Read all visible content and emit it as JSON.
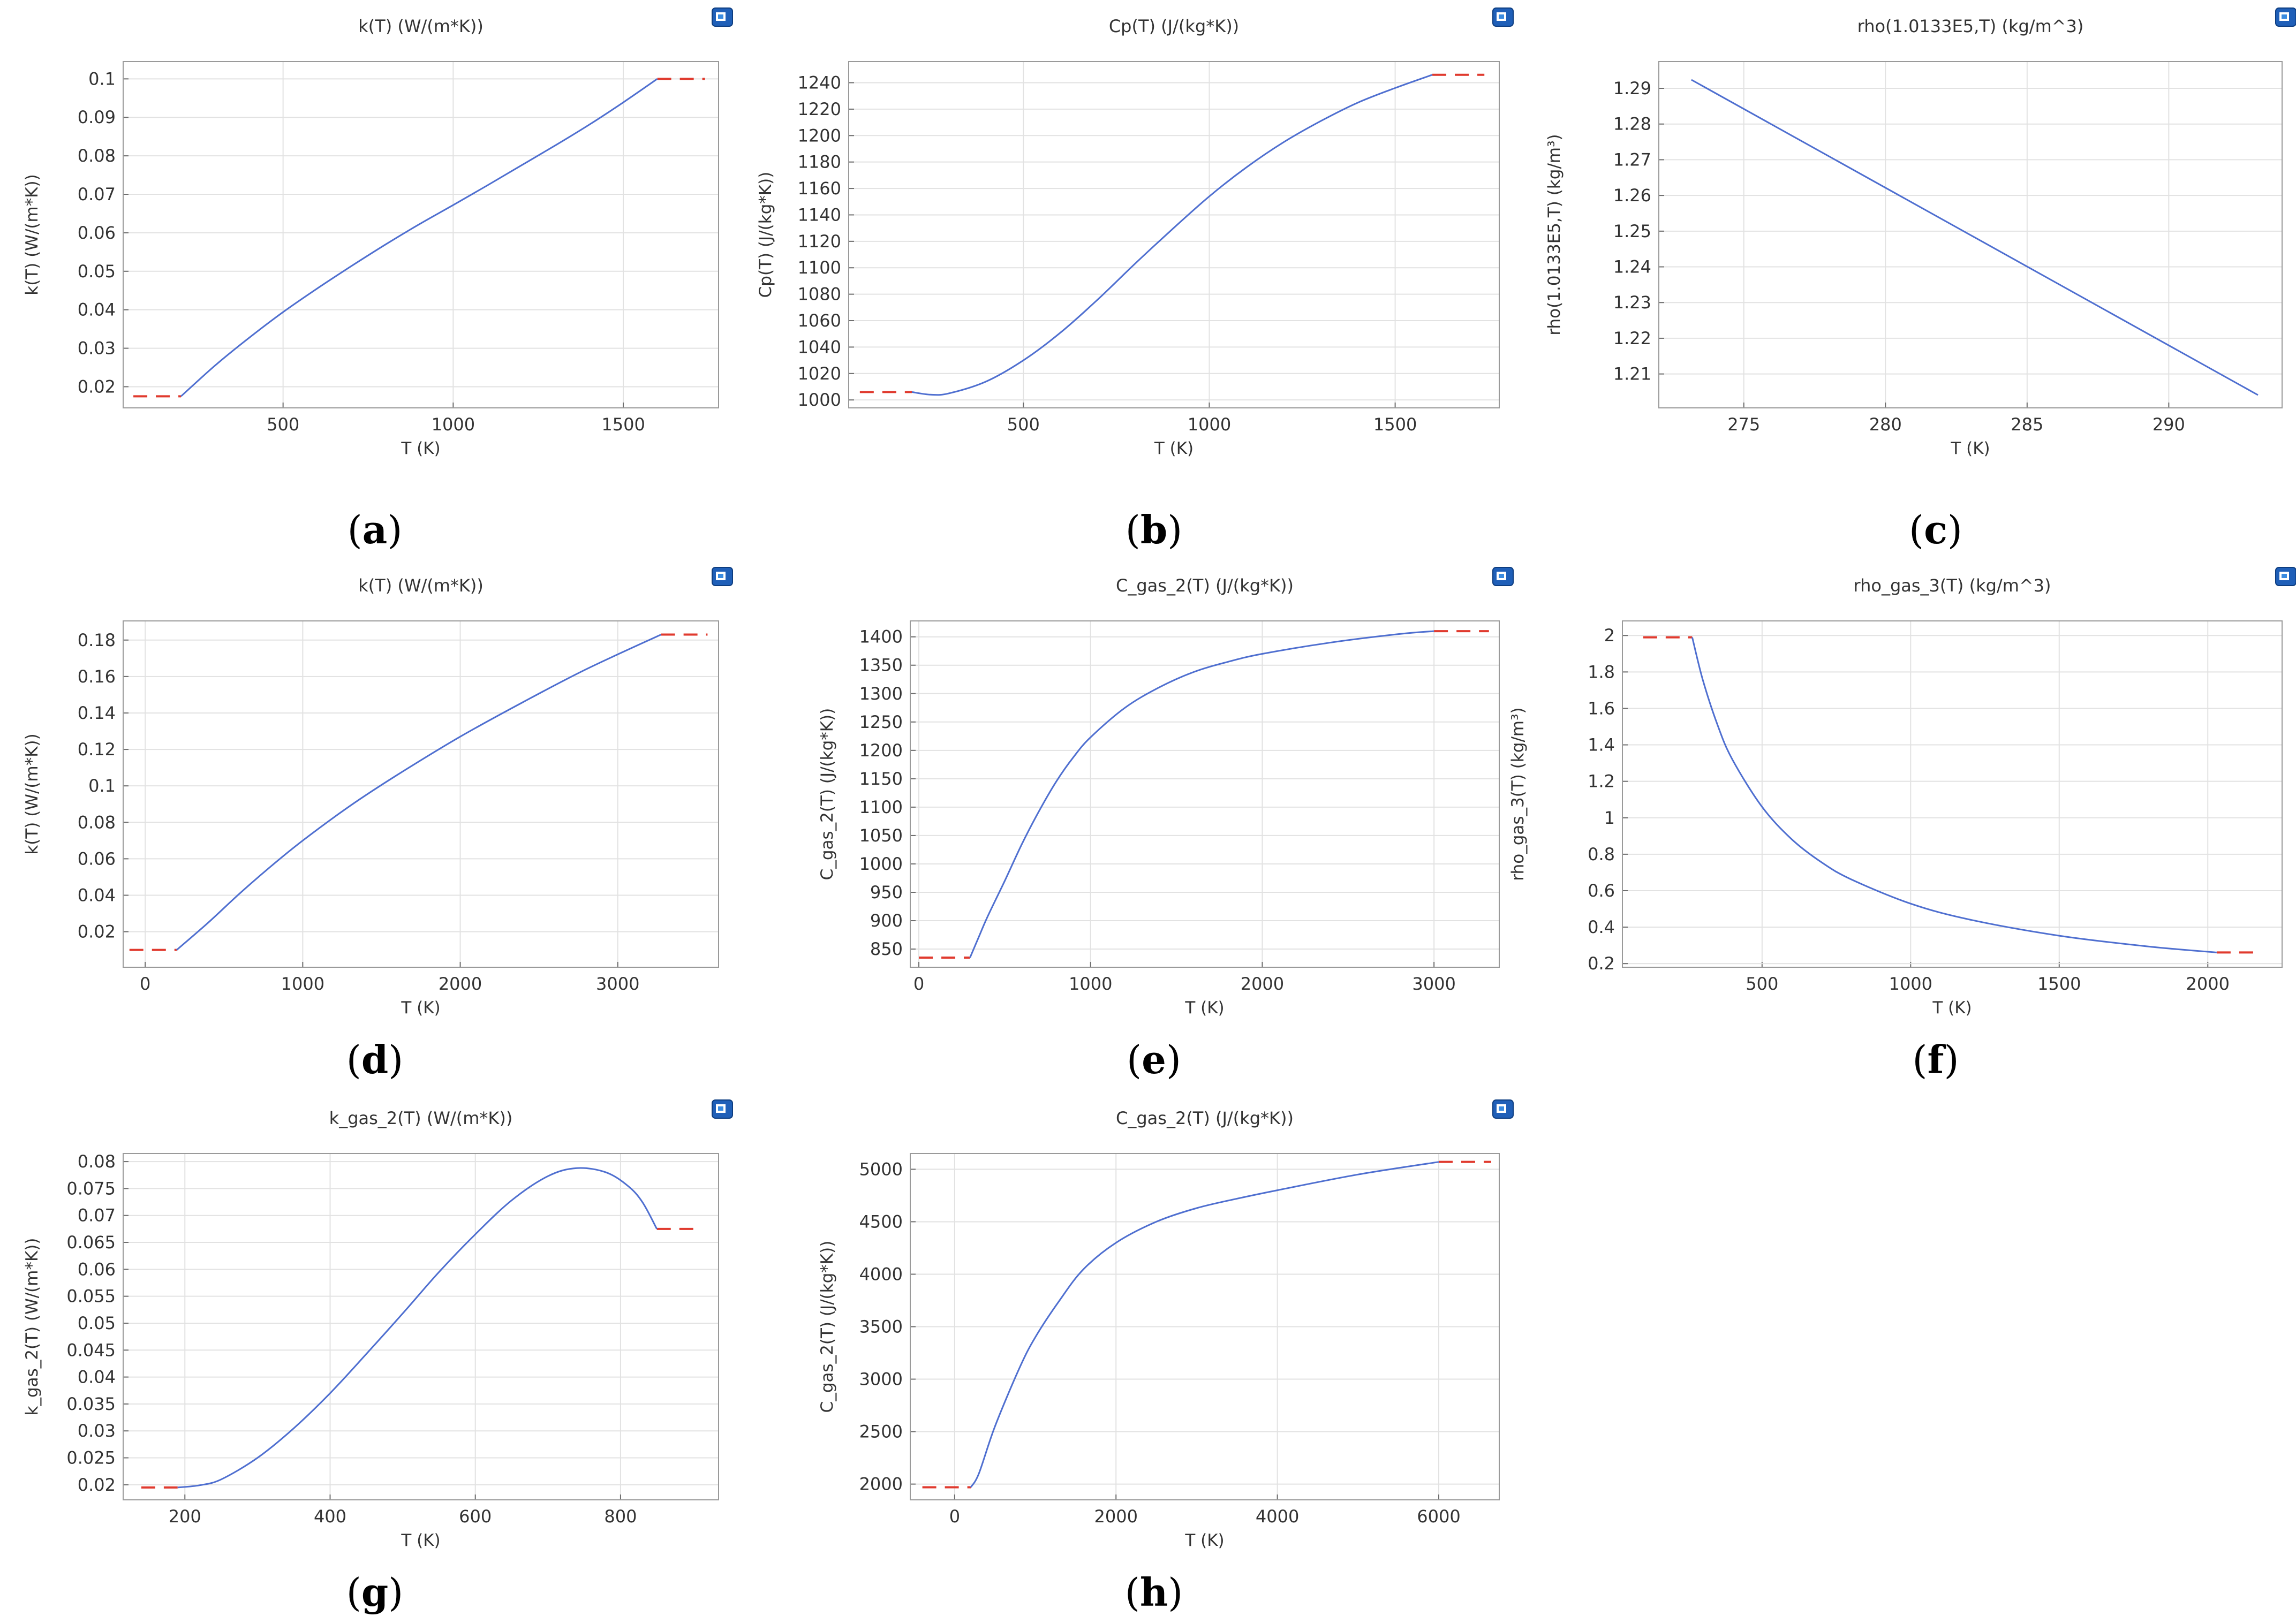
{
  "colors": {
    "curve": "#4f6fd0",
    "extrapolation": "#e03a2e",
    "grid": "#e2e2e2",
    "frame": "#9a9a9a",
    "text": "#333333"
  },
  "icons": {
    "panel_export": "image-export-icon"
  },
  "chart_data": [
    {
      "id": "a",
      "panel_label": "a",
      "type": "line",
      "title": "k(T) (W/(m*K))",
      "xlabel": "T (K)",
      "ylabel": "k(T) (W/(m*K))",
      "xlim": [
        30,
        1780
      ],
      "ylim": [
        0.0145,
        0.1045
      ],
      "xticks": [
        500,
        1000,
        1500
      ],
      "xtick_labels": [
        "500",
        "1000",
        "1500"
      ],
      "yticks": [
        0.02,
        0.03,
        0.04,
        0.05,
        0.06,
        0.07,
        0.08,
        0.09,
        0.1
      ],
      "ytick_labels": [
        "0.02",
        "0.03",
        "0.04",
        "0.05",
        "0.06",
        "0.07",
        "0.08",
        "0.09",
        "0.1"
      ],
      "series": [
        {
          "name": "k(T)",
          "x": [
            200,
            300,
            400,
            500,
            600,
            700,
            800,
            900,
            1000,
            1100,
            1200,
            1300,
            1400,
            1500,
            1600
          ],
          "y": [
            0.0175,
            0.0255,
            0.0327,
            0.0394,
            0.0455,
            0.0513,
            0.0569,
            0.0622,
            0.0672,
            0.0723,
            0.0775,
            0.0827,
            0.0881,
            0.0939,
            0.1
          ]
        }
      ],
      "extrapolation": [
        {
          "x": [
            60,
            200
          ],
          "y": 0.0175
        },
        {
          "x": [
            1600,
            1740
          ],
          "y": 0.1
        }
      ]
    },
    {
      "id": "b",
      "panel_label": "b",
      "type": "line",
      "title": "Cp(T) (J/(kg*K))",
      "xlabel": "T (K)",
      "ylabel": "Cp(T) (J/(kg*K))",
      "xlim": [
        30,
        1780
      ],
      "ylim": [
        994,
        1256
      ],
      "xticks": [
        500,
        1000,
        1500
      ],
      "xtick_labels": [
        "500",
        "1000",
        "1500"
      ],
      "yticks": [
        1000,
        1020,
        1040,
        1060,
        1080,
        1100,
        1120,
        1140,
        1160,
        1180,
        1200,
        1220,
        1240
      ],
      "ytick_labels": [
        "1000",
        "1020",
        "1040",
        "1060",
        "1080",
        "1100",
        "1120",
        "1140",
        "1160",
        "1180",
        "1200",
        "1220",
        "1240"
      ],
      "series": [
        {
          "name": "Cp(T)",
          "x": [
            200,
            250,
            300,
            400,
            500,
            600,
            700,
            800,
            900,
            1000,
            1100,
            1200,
            1300,
            1400,
            1500,
            1600
          ],
          "y": [
            1006,
            1004,
            1005,
            1014,
            1030,
            1051,
            1076,
            1103,
            1129,
            1154,
            1176,
            1195,
            1211,
            1225,
            1236,
            1246
          ]
        }
      ],
      "extrapolation": [
        {
          "x": [
            60,
            200
          ],
          "y": 1006
        },
        {
          "x": [
            1600,
            1740
          ],
          "y": 1246
        }
      ]
    },
    {
      "id": "c",
      "panel_label": "c",
      "type": "line",
      "title": "rho(1.0133E5,T) (kg/m^3)",
      "xlabel": "T (K)",
      "ylabel": "rho(1.0133E5,T) (kg/m³)",
      "xlim": [
        272,
        294
      ],
      "ylim": [
        1.2005,
        1.2975
      ],
      "xticks": [
        275,
        280,
        285,
        290
      ],
      "xtick_labels": [
        "275",
        "280",
        "285",
        "290"
      ],
      "yticks": [
        1.21,
        1.22,
        1.23,
        1.24,
        1.25,
        1.26,
        1.27,
        1.28,
        1.29
      ],
      "ytick_labels": [
        "1.21",
        "1.22",
        "1.23",
        "1.24",
        "1.25",
        "1.26",
        "1.27",
        "1.28",
        "1.29"
      ],
      "series": [
        {
          "name": "rho(1.0133E5,T)",
          "x": [
            273.15,
            293.15
          ],
          "y": [
            1.2924,
            1.2041
          ]
        }
      ],
      "extrapolation": []
    },
    {
      "id": "d",
      "panel_label": "d",
      "type": "line",
      "title": "k(T) (W/(m*K))",
      "xlabel": "T (K)",
      "ylabel": "k(T) (W/(m*K))",
      "xlim": [
        -140,
        3640
      ],
      "ylim": [
        0.0005,
        0.1905
      ],
      "xticks": [
        0,
        1000,
        2000,
        3000
      ],
      "xtick_labels": [
        "0",
        "1000",
        "2000",
        "3000"
      ],
      "yticks": [
        0.02,
        0.04,
        0.06,
        0.08,
        0.1,
        0.12,
        0.14,
        0.16,
        0.18
      ],
      "ytick_labels": [
        "0.02",
        "0.04",
        "0.06",
        "0.08",
        "0.1",
        "0.12",
        "0.14",
        "0.16",
        "0.18"
      ],
      "series": [
        {
          "name": "k(T)",
          "x": [
            200,
            400,
            600,
            800,
            1000,
            1300,
            1600,
            2000,
            2400,
            2800,
            3275
          ],
          "y": [
            0.01,
            0.025,
            0.041,
            0.056,
            0.07,
            0.089,
            0.106,
            0.127,
            0.146,
            0.164,
            0.183
          ]
        }
      ],
      "extrapolation": [
        {
          "x": [
            -100,
            200
          ],
          "y": 0.01
        },
        {
          "x": [
            3275,
            3570
          ],
          "y": 0.183
        }
      ]
    },
    {
      "id": "e",
      "panel_label": "e",
      "type": "line",
      "title": "C_gas_2(T) (J/(kg*K))",
      "xlabel": "T (K)",
      "ylabel": "C_gas_2(T) (J/(kg*K))",
      "xlim": [
        -50,
        3380
      ],
      "ylim": [
        818,
        1428
      ],
      "xticks": [
        0,
        1000,
        2000,
        3000
      ],
      "xtick_labels": [
        "0",
        "1000",
        "2000",
        "3000"
      ],
      "yticks": [
        850,
        900,
        950,
        1000,
        1050,
        1100,
        1150,
        1200,
        1250,
        1300,
        1350,
        1400
      ],
      "ytick_labels": [
        "850",
        "900",
        "950",
        "1000",
        "1050",
        "1100",
        "1150",
        "1200",
        "1250",
        "1300",
        "1350",
        "1400"
      ],
      "series": [
        {
          "name": "C_gas_2(T)",
          "x": [
            298,
            350,
            400,
            500,
            600,
            700,
            800,
            900,
            1000,
            1200,
            1400,
            1600,
            1800,
            2000,
            2400,
            2800,
            3000
          ],
          "y": [
            835,
            872,
            907,
            970,
            1035,
            1093,
            1145,
            1188,
            1223,
            1275,
            1311,
            1338,
            1356,
            1370,
            1390,
            1405,
            1410
          ]
        }
      ],
      "extrapolation": [
        {
          "x": [
            0,
            298
          ],
          "y": 835
        },
        {
          "x": [
            3000,
            3320
          ],
          "y": 1410
        }
      ]
    },
    {
      "id": "f",
      "panel_label": "f",
      "type": "line",
      "title": "rho_gas_3(T) (kg/m^3)",
      "xlabel": "T (K)",
      "ylabel": "rho_gas_3(T) (kg/m³)",
      "xlim": [
        30,
        2250
      ],
      "ylim": [
        0.18,
        2.08
      ],
      "xticks": [
        500,
        1000,
        1500,
        2000
      ],
      "xtick_labels": [
        "500",
        "1000",
        "1500",
        "2000"
      ],
      "yticks": [
        0.2,
        0.4,
        0.6,
        0.8,
        1,
        1.2,
        1.4,
        1.6,
        1.8,
        2
      ],
      "ytick_labels": [
        "0.2",
        "0.4",
        "0.6",
        "0.8",
        "1",
        "1.2",
        "1.4",
        "1.6",
        "1.8",
        "2"
      ],
      "series": [
        {
          "name": "rho_gas_3(T)",
          "x": [
            265,
            300,
            350,
            400,
            500,
            600,
            700,
            800,
            1000,
            1200,
            1500,
            1800,
            2030
          ],
          "y": [
            1.99,
            1.76,
            1.51,
            1.32,
            1.06,
            0.882,
            0.756,
            0.662,
            0.529,
            0.441,
            0.353,
            0.294,
            0.261
          ]
        }
      ],
      "extrapolation": [
        {
          "x": [
            100,
            265
          ],
          "y": 1.99
        },
        {
          "x": [
            2030,
            2180
          ],
          "y": 0.261
        }
      ]
    },
    {
      "id": "g",
      "panel_label": "g",
      "type": "line",
      "title": "k_gas_2(T) (W/(m*K))",
      "xlabel": "T (K)",
      "ylabel": "k_gas_2(T) (W/(m*K))",
      "xlim": [
        115,
        935
      ],
      "ylim": [
        0.0172,
        0.0815
      ],
      "xticks": [
        200,
        400,
        600,
        800
      ],
      "xtick_labels": [
        "200",
        "400",
        "600",
        "800"
      ],
      "yticks": [
        0.02,
        0.025,
        0.03,
        0.035,
        0.04,
        0.045,
        0.05,
        0.055,
        0.06,
        0.065,
        0.07,
        0.075,
        0.08
      ],
      "ytick_labels": [
        "0.02",
        "0.025",
        "0.03",
        "0.035",
        "0.04",
        "0.045",
        "0.05",
        "0.055",
        "0.06",
        "0.065",
        "0.07",
        "0.075",
        "0.08"
      ],
      "series": [
        {
          "name": "k_gas_2(T)",
          "x": [
            190,
            220,
            250,
            300,
            350,
            400,
            450,
            500,
            550,
            600,
            650,
            700,
            740,
            780,
            810,
            830,
            850
          ],
          "y": [
            0.0195,
            0.0199,
            0.021,
            0.025,
            0.0305,
            0.037,
            0.0443,
            0.0518,
            0.0595,
            0.0665,
            0.0728,
            0.0773,
            0.0788,
            0.078,
            0.0755,
            0.0725,
            0.0675
          ]
        }
      ],
      "extrapolation": [
        {
          "x": [
            140,
            190
          ],
          "y": 0.0195
        },
        {
          "x": [
            850,
            910
          ],
          "y": 0.0675
        }
      ]
    },
    {
      "id": "h",
      "panel_label": "h",
      "type": "line",
      "title": "C_gas_2(T) (J/(kg*K))",
      "xlabel": "T (K)",
      "ylabel": "C_gas_2(T) (J/(kg*K))",
      "xlim": [
        -550,
        6750
      ],
      "ylim": [
        1850,
        5150
      ],
      "xticks": [
        0,
        2000,
        4000,
        6000
      ],
      "xtick_labels": [
        "0",
        "2000",
        "4000",
        "6000"
      ],
      "yticks": [
        2000,
        2500,
        3000,
        3500,
        4000,
        4500,
        5000
      ],
      "ytick_labels": [
        "2000",
        "2500",
        "3000",
        "3500",
        "4000",
        "4500",
        "5000"
      ],
      "series": [
        {
          "name": "C_gas_2(T)",
          "x": [
            200,
            300,
            500,
            800,
            1000,
            1300,
            1600,
            2000,
            2500,
            3000,
            3500,
            4000,
            5000,
            6000
          ],
          "y": [
            1970,
            2100,
            2550,
            3100,
            3400,
            3750,
            4050,
            4300,
            4500,
            4630,
            4720,
            4800,
            4950,
            5070
          ]
        }
      ],
      "extrapolation": [
        {
          "x": [
            -400,
            200
          ],
          "y": 1970
        },
        {
          "x": [
            6000,
            6650
          ],
          "y": 5070
        }
      ]
    }
  ]
}
